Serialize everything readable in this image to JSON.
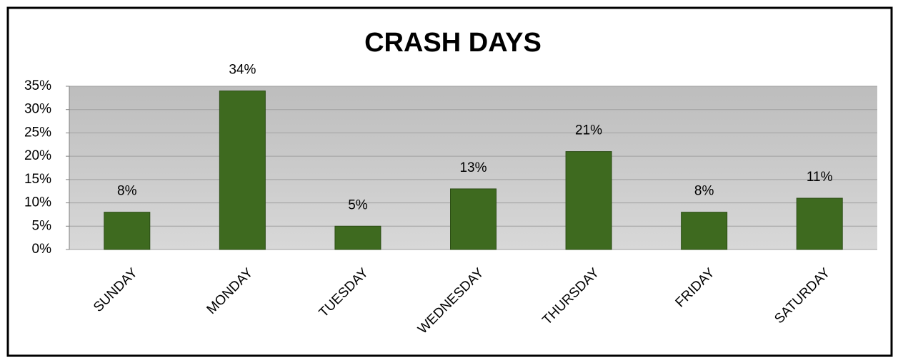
{
  "chart_data": {
    "type": "bar",
    "title": "CRASH DAYS",
    "categories": [
      "SUNDAY",
      "MONDAY",
      "TUESDAY",
      "WEDNESDAY",
      "THURSDAY",
      "FRIDAY",
      "SATURDAY"
    ],
    "values": [
      8,
      34,
      5,
      13,
      21,
      8,
      11
    ],
    "value_labels": [
      "8%",
      "34%",
      "5%",
      "13%",
      "21%",
      "8%",
      "11%"
    ],
    "color": "#3e6a1f",
    "ylim": [
      0,
      35
    ],
    "yticks": [
      {
        "value": 0,
        "label": "0%"
      },
      {
        "value": 5,
        "label": "5%"
      },
      {
        "value": 10,
        "label": "10%"
      },
      {
        "value": 15,
        "label": "15%"
      },
      {
        "value": 20,
        "label": "20%"
      },
      {
        "value": 25,
        "label": "25%"
      },
      {
        "value": 30,
        "label": "30%"
      },
      {
        "value": 35,
        "label": "35%"
      }
    ],
    "grid": true
  }
}
